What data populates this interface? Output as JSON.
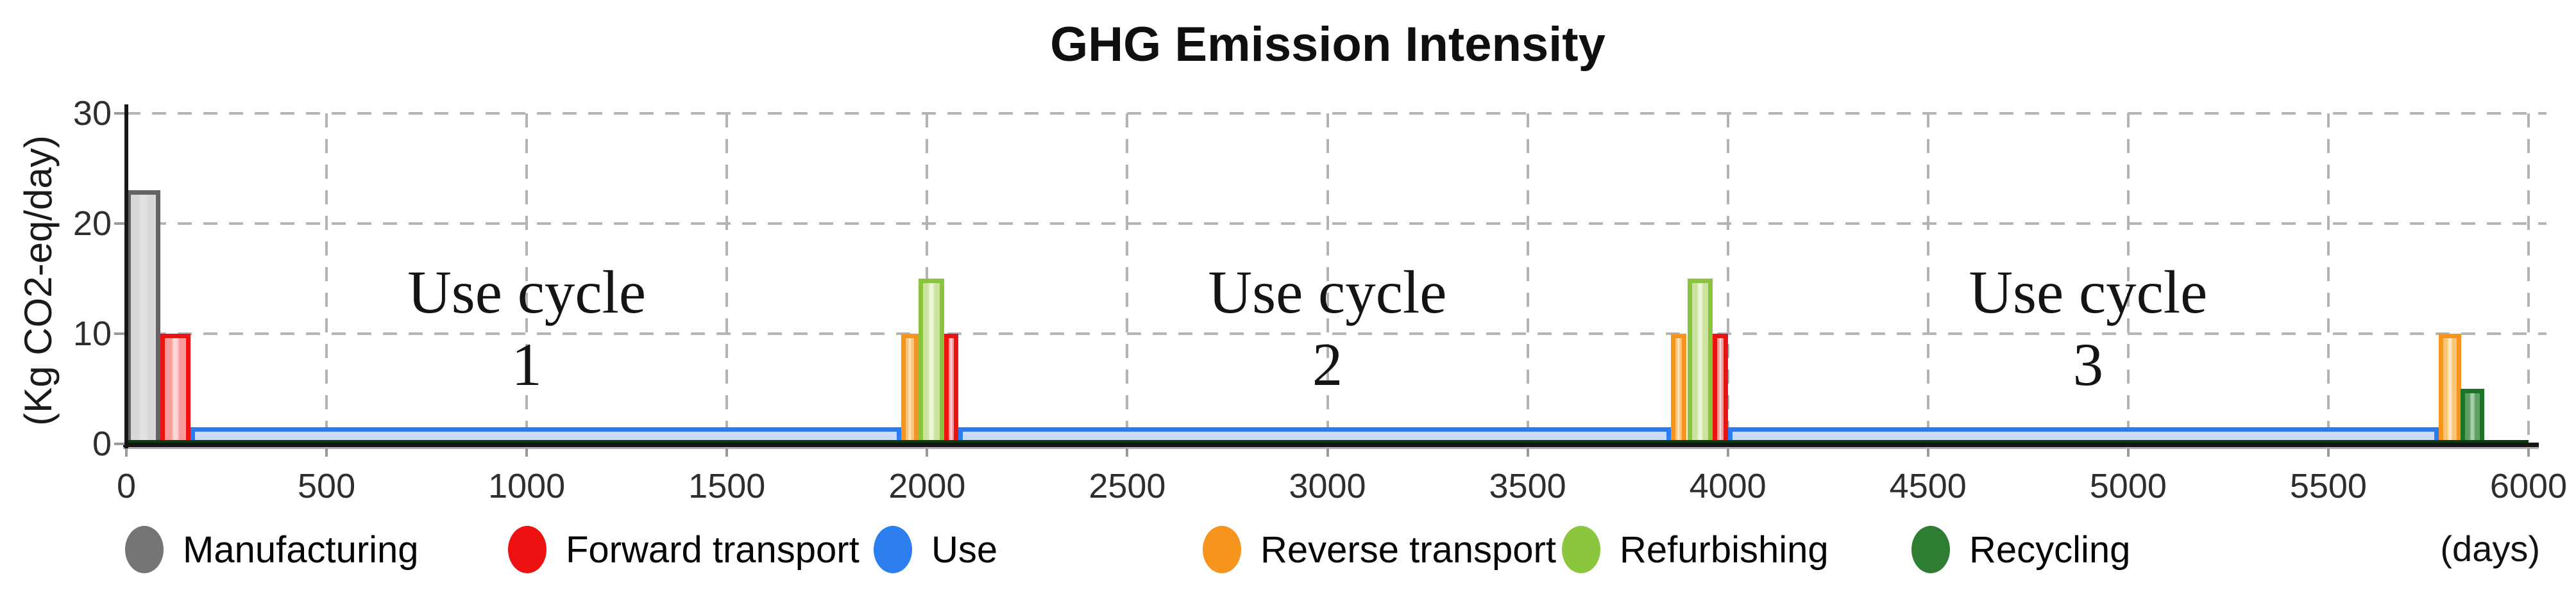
{
  "chart_data": {
    "type": "bar",
    "title": "GHG Emission Intensity",
    "ylabel": "(Kg CO2-eq/day)",
    "xlabel": "(days)",
    "xlim": [
      0,
      6000
    ],
    "ylim": [
      0,
      30
    ],
    "x_ticks": [
      0,
      500,
      1000,
      1500,
      2000,
      2500,
      3000,
      3500,
      4000,
      4500,
      5000,
      5500,
      6000
    ],
    "y_ticks": [
      0,
      10,
      20,
      30
    ],
    "grid": "dashed",
    "legend_position": "bottom",
    "series": [
      {
        "name": "Use",
        "render": "area",
        "stroke": "#2b7cf2",
        "fill": "#c8dcf7",
        "stripe": "#c8dcf7",
        "segments": [
          {
            "start": 160,
            "end": 1935,
            "value": 1.5
          },
          {
            "start": 2078,
            "end": 3858,
            "value": 1.5
          },
          {
            "start": 4000,
            "end": 5775,
            "value": 1.5
          }
        ]
      },
      {
        "name": "Manufacturing",
        "render": "bar",
        "stroke": "#636363",
        "fill": "#d8d8d8",
        "stripe": "#e2e2e2",
        "segments": [
          {
            "start": 0,
            "end": 85,
            "value": 23
          }
        ]
      },
      {
        "name": "Reverse transport",
        "render": "bar",
        "stroke": "#f7941d",
        "fill": "#fbc476",
        "stripe": "#fde9c4",
        "segments": [
          {
            "start": 1935,
            "end": 1978,
            "value": 10
          },
          {
            "start": 3858,
            "end": 3897,
            "value": 10
          },
          {
            "start": 5775,
            "end": 5832,
            "value": 10
          }
        ]
      },
      {
        "name": "Refurbishing",
        "render": "bar",
        "stroke": "#8ac33c",
        "fill": "#cbe49d",
        "stripe": "#edf6d8",
        "segments": [
          {
            "start": 1978,
            "end": 2042,
            "value": 15
          },
          {
            "start": 3900,
            "end": 3962,
            "value": 15
          }
        ]
      },
      {
        "name": "Forward transport",
        "render": "bar",
        "stroke": "#ee1111",
        "fill": "#f79b9b",
        "stripe": "#fcd6d6",
        "segments": [
          {
            "start": 85,
            "end": 160,
            "value": 10
          },
          {
            "start": 2042,
            "end": 2078,
            "value": 10
          },
          {
            "start": 3962,
            "end": 4000,
            "value": 10
          }
        ]
      },
      {
        "name": "Recycling",
        "render": "bar",
        "stroke": "#1d7327",
        "fill": "#5ca061",
        "stripe": "#a8cdaa",
        "baseline_color": "#0d3a11",
        "segments": [
          {
            "start": 5830,
            "end": 5890,
            "value": 5
          },
          {
            "start": 0,
            "end": 6000,
            "value": 0.15,
            "style": "baseline"
          }
        ]
      }
    ],
    "annotations": [
      {
        "line1": "Use cycle",
        "line2": "1",
        "x": 1000
      },
      {
        "line1": "Use cycle",
        "line2": "2",
        "x": 3000
      },
      {
        "line1": "Use cycle",
        "line2": "3",
        "x": 4900
      }
    ]
  },
  "legend": [
    {
      "label": "Manufacturing",
      "color": "#757575"
    },
    {
      "label": "Forward transport",
      "color": "#ee1111"
    },
    {
      "label": "Use",
      "color": "#2d7ff0"
    },
    {
      "label": "Reverse transport",
      "color": "#f7941d"
    },
    {
      "label": "Refurbishing",
      "color": "#8cc63e"
    },
    {
      "label": "Recycling",
      "color": "#2e7d32"
    }
  ]
}
